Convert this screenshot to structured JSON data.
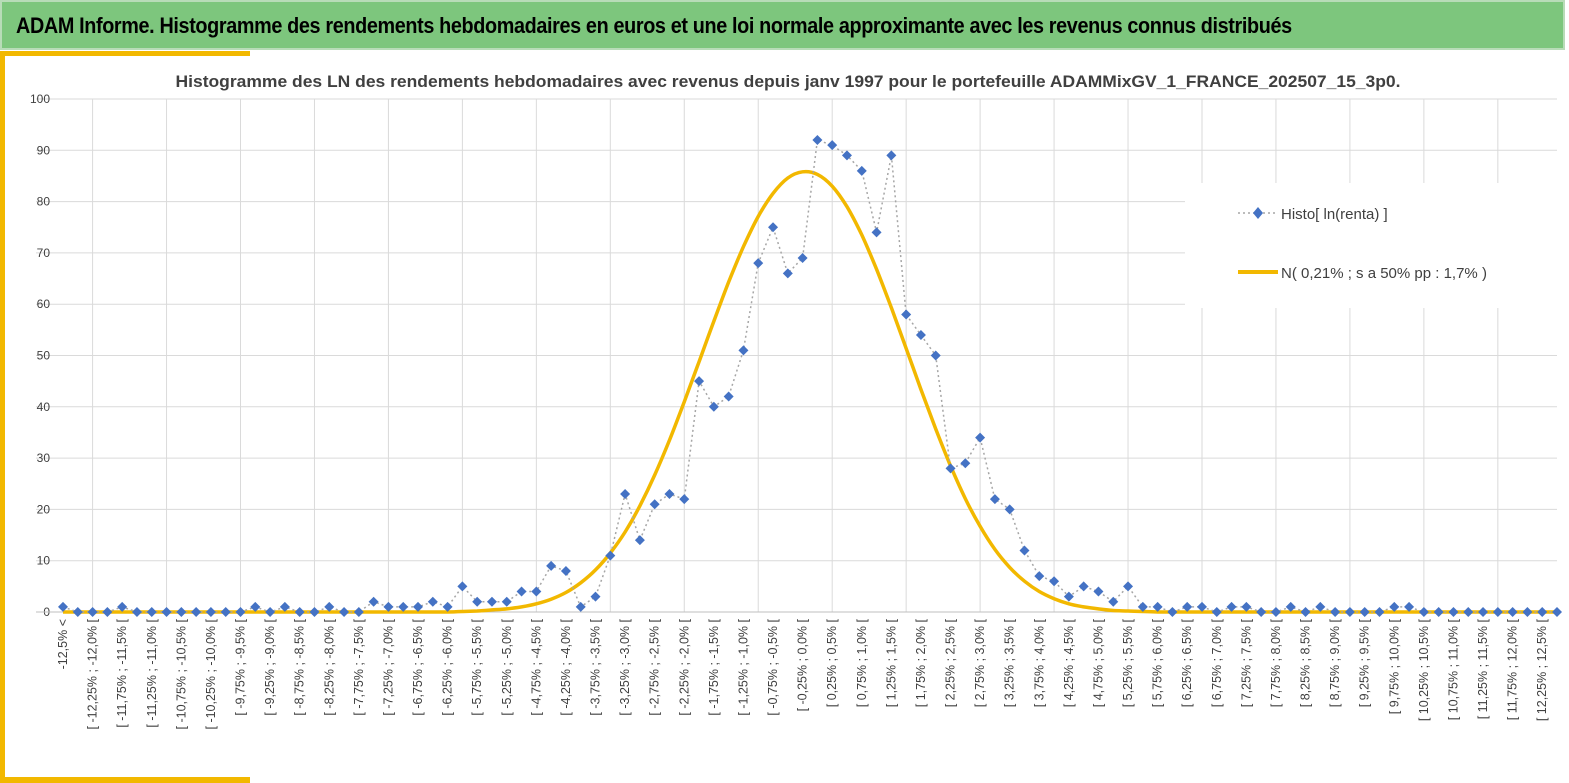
{
  "header": {
    "title": "ADAM Informe. Histogramme des rendements hebdomadaires en euros et une loi normale approximante avec les revenus connus distribués"
  },
  "chart_data": {
    "type": "line",
    "title": "Histogramme des LN des rendements hebdomadaires avec revenus depuis janv 1997 pour le portefeuille ADAMMixGV_1_FRANCE_202507_15_3p0.",
    "xlabel": "",
    "ylabel": "",
    "ylim": [
      0,
      100
    ],
    "yticks": [
      0,
      10,
      20,
      30,
      40,
      50,
      60,
      70,
      80,
      90,
      100
    ],
    "grid": true,
    "legend_position": "right",
    "categories": [
      "-12,5% <",
      "[ -12,5% ; -12,25% [",
      "[ -12,25% ; -12,0% [",
      "[ -12,0% ; -11,75% [",
      "[ -11,75% ; -11,5% [",
      "[ -11,5% ; -11,25% [",
      "[ -11,25% ; -11,0% [",
      "[ -11,0% ; -10,75% [",
      "[ -10,75% ; -10,5% [",
      "[ -10,5% ; -10,25% [",
      "[ -10,25% ; -10,0% [",
      "[ -10,0% ; -9,75% [",
      "[ -9,75% ; -9,5% [",
      "[ -9,5% ; -9,25% [",
      "[ -9,25% ; -9,0% [",
      "[ -9,0% ; -8,75% [",
      "[ -8,75% ; -8,5% [",
      "[ -8,5% ; -8,25% [",
      "[ -8,25% ; -8,0% [",
      "[ -8,0% ; -7,75% [",
      "[ -7,75% ; -7,5% [",
      "[ -7,5% ; -7,25% [",
      "[ -7,25% ; -7,0% [",
      "[ -7,0% ; -6,75% [",
      "[ -6,75% ; -6,5% [",
      "[ -6,5% ; -6,25% [",
      "[ -6,25% ; -6,0% [",
      "[ -6,0% ; -5,75% [",
      "[ -5,75% ; -5,5% [",
      "[ -5,5% ; -5,25% [",
      "[ -5,25% ; -5,0% [",
      "[ -5,0% ; -4,75% [",
      "[ -4,75% ; -4,5% [",
      "[ -4,5% ; -4,25% [",
      "[ -4,25% ; -4,0% [",
      "[ -4,0% ; -3,75% [",
      "[ -3,75% ; -3,5% [",
      "[ -3,5% ; -3,25% [",
      "[ -3,25% ; -3,0% [",
      "[ -3,0% ; -2,75% [",
      "[ -2,75% ; -2,5% [",
      "[ -2,5% ; -2,25% [",
      "[ -2,25% ; -2,0% [",
      "[ -2,0% ; -1,75% [",
      "[ -1,75% ; -1,5% [",
      "[ -1,5% ; -1,25% [",
      "[ -1,25% ; -1,0% [",
      "[ -1,0% ; -0,75% [",
      "[ -0,75% ; -0,5% [",
      "[ -0,5% ; -0,25% [",
      "[ -0,25% ; 0,0% [",
      "[ 0,0% ; 0,25% [",
      "[ 0,25% ; 0,5% [",
      "[ 0,5% ; 0,75% [",
      "[ 0,75% ; 1,0% [",
      "[ 1,0% ; 1,25% [",
      "[ 1,25% ; 1,5% [",
      "[ 1,5% ; 1,75% [",
      "[ 1,75% ; 2,0% [",
      "[ 2,0% ; 2,25% [",
      "[ 2,25% ; 2,5% [",
      "[ 2,5% ; 2,75% [",
      "[ 2,75% ; 3,0% [",
      "[ 3,0% ; 3,25% [",
      "[ 3,25% ; 3,5% [",
      "[ 3,5% ; 3,75% [",
      "[ 3,75% ; 4,0% [",
      "[ 4,0% ; 4,25% [",
      "[ 4,25% ; 4,5% [",
      "[ 4,5% ; 4,75% [",
      "[ 4,75% ; 5,0% [",
      "[ 5,0% ; 5,25% [",
      "[ 5,25% ; 5,5% [",
      "[ 5,5% ; 5,75% [",
      "[ 5,75% ; 6,0% [",
      "[ 6,0% ; 6,25% [",
      "[ 6,25% ; 6,5% [",
      "[ 6,5% ; 6,75% [",
      "[ 6,75% ; 7,0% [",
      "[ 7,0% ; 7,25% [",
      "[ 7,25% ; 7,5% [",
      "[ 7,5% ; 7,75% [",
      "[ 7,75% ; 8,0% [",
      "[ 8,0% ; 8,25% [",
      "[ 8,25% ; 8,5% [",
      "[ 8,5% ; 8,75% [",
      "[ 8,75% ; 9,0% [",
      "[ 9,0% ; 9,25% [",
      "[ 9,25% ; 9,5% [",
      "[ 9,5% ; 9,75% [",
      "[ 9,75% ; 10,0% [",
      "[ 10,0% ; 10,25% [",
      "[ 10,25% ; 10,5% [",
      "[ 10,5% ; 10,75% [",
      "[ 10,75% ; 11,0% [",
      "[ 11,0% ; 11,25% [",
      "[ 11,25% ; 11,5% [",
      "[ 11,5% ; 11,75% [",
      "[ 11,75% ; 12,0% [",
      "[ 12,0% ; 12,25% [",
      "[ 12,25% ; 12,5% [",
      "12,5% <"
    ],
    "series": [
      {
        "name": "Histo[ ln(renta) ]",
        "color": "#4472c4",
        "style": "dotted-line-diamond-markers",
        "values": [
          1,
          0,
          0,
          0,
          1,
          0,
          0,
          0,
          0,
          0,
          0,
          0,
          0,
          1,
          0,
          1,
          0,
          0,
          1,
          0,
          0,
          2,
          1,
          1,
          1,
          2,
          1,
          5,
          2,
          2,
          2,
          4,
          4,
          9,
          8,
          1,
          3,
          11,
          23,
          14,
          21,
          23,
          22,
          45,
          40,
          42,
          51,
          68,
          75,
          66,
          69,
          92,
          91,
          89,
          86,
          74,
          89,
          58,
          54,
          50,
          28,
          29,
          34,
          22,
          20,
          12,
          7,
          6,
          3,
          5,
          4,
          2,
          5,
          1,
          1,
          0,
          1,
          1,
          0,
          1,
          1,
          0,
          0,
          1,
          0,
          1,
          0,
          0,
          0,
          0,
          1,
          1,
          0,
          0,
          0,
          0,
          0,
          0,
          0,
          0,
          0,
          0
        ]
      },
      {
        "name": "N( 0,21% ; s a 50% pp : 1,7% )",
        "color": "#f2b800",
        "style": "solid-line",
        "values": [
          0,
          0,
          0,
          0,
          0,
          0,
          0,
          0,
          0,
          0,
          0,
          0,
          0,
          0,
          0,
          0,
          0,
          0,
          0,
          0,
          0,
          0,
          0,
          0,
          0,
          0,
          0,
          0.1,
          0.2,
          0.4,
          0.6,
          1.0,
          1.6,
          2.5,
          3.8,
          5.7,
          8.2,
          11.5,
          15.6,
          20.7,
          26.7,
          33.5,
          41.0,
          48.8,
          56.7,
          64.3,
          71.2,
          77.1,
          81.6,
          84.6,
          85.8,
          85.3,
          83.0,
          79.0,
          73.5,
          66.8,
          59.3,
          51.4,
          43.4,
          35.7,
          28.5,
          22.1,
          16.7,
          12.2,
          8.7,
          6.0,
          4.0,
          2.6,
          1.6,
          1.0,
          0.6,
          0.3,
          0.2,
          0.1,
          0,
          0,
          0,
          0,
          0,
          0,
          0,
          0,
          0,
          0,
          0,
          0,
          0,
          0,
          0,
          0,
          0,
          0,
          0,
          0,
          0,
          0,
          0,
          0,
          0,
          0,
          0,
          0
        ]
      }
    ]
  }
}
